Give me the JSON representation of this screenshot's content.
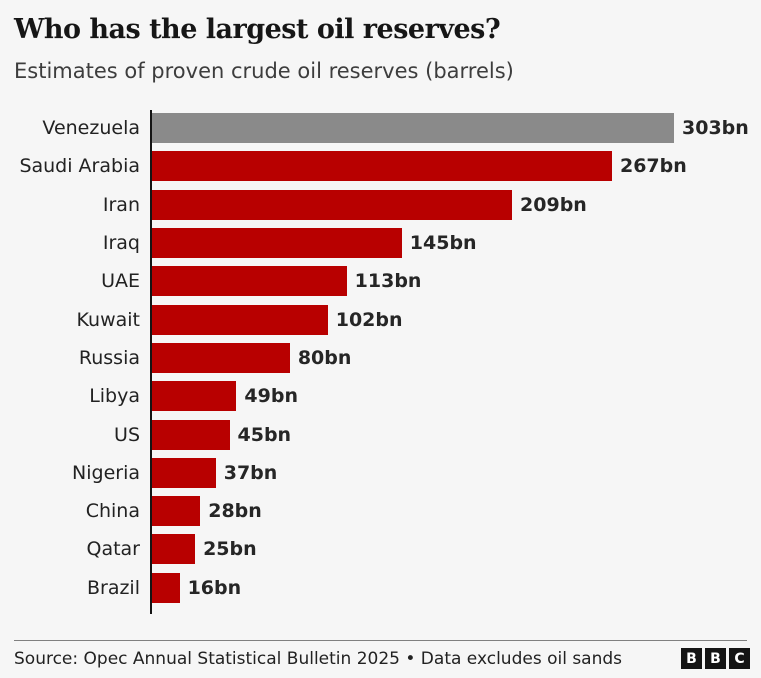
{
  "header": {
    "title": "Who has the largest oil reserves?",
    "subtitle": "Estimates of proven crude oil reserves (barrels)"
  },
  "chart_data": {
    "type": "bar",
    "orientation": "horizontal",
    "title": "Who has the largest oil reserves?",
    "subtitle": "Estimates of proven crude oil reserves (barrels)",
    "unit": "bn",
    "xlim": [
      0,
      303
    ],
    "grid": false,
    "legend": false,
    "categories": [
      "Venezuela",
      "Saudi Arabia",
      "Iran",
      "Iraq",
      "UAE",
      "Kuwait",
      "Russia",
      "Libya",
      "US",
      "Nigeria",
      "China",
      "Qatar",
      "Brazil"
    ],
    "values": [
      303,
      267,
      209,
      145,
      113,
      102,
      80,
      49,
      45,
      37,
      28,
      25,
      16
    ],
    "value_labels": [
      "303bn",
      "267bn",
      "209bn",
      "145bn",
      "113bn",
      "102bn",
      "80bn",
      "49bn",
      "45bn",
      "37bn",
      "28bn",
      "25bn",
      "16bn"
    ],
    "bar_colors": [
      "#8a8a8a",
      "#b80000",
      "#b80000",
      "#b80000",
      "#b80000",
      "#b80000",
      "#b80000",
      "#b80000",
      "#b80000",
      "#b80000",
      "#b80000",
      "#b80000",
      "#b80000"
    ]
  },
  "colors": {
    "bar_red": "#b80000",
    "bar_highlight_gray": "#8a8a8a",
    "background": "#f6f6f6",
    "axis": "#141414"
  },
  "footer": {
    "source": "Source: Opec Annual Statistical Bulletin 2025 • Data excludes oil sands",
    "logo_letters": [
      "B",
      "B",
      "C"
    ]
  }
}
